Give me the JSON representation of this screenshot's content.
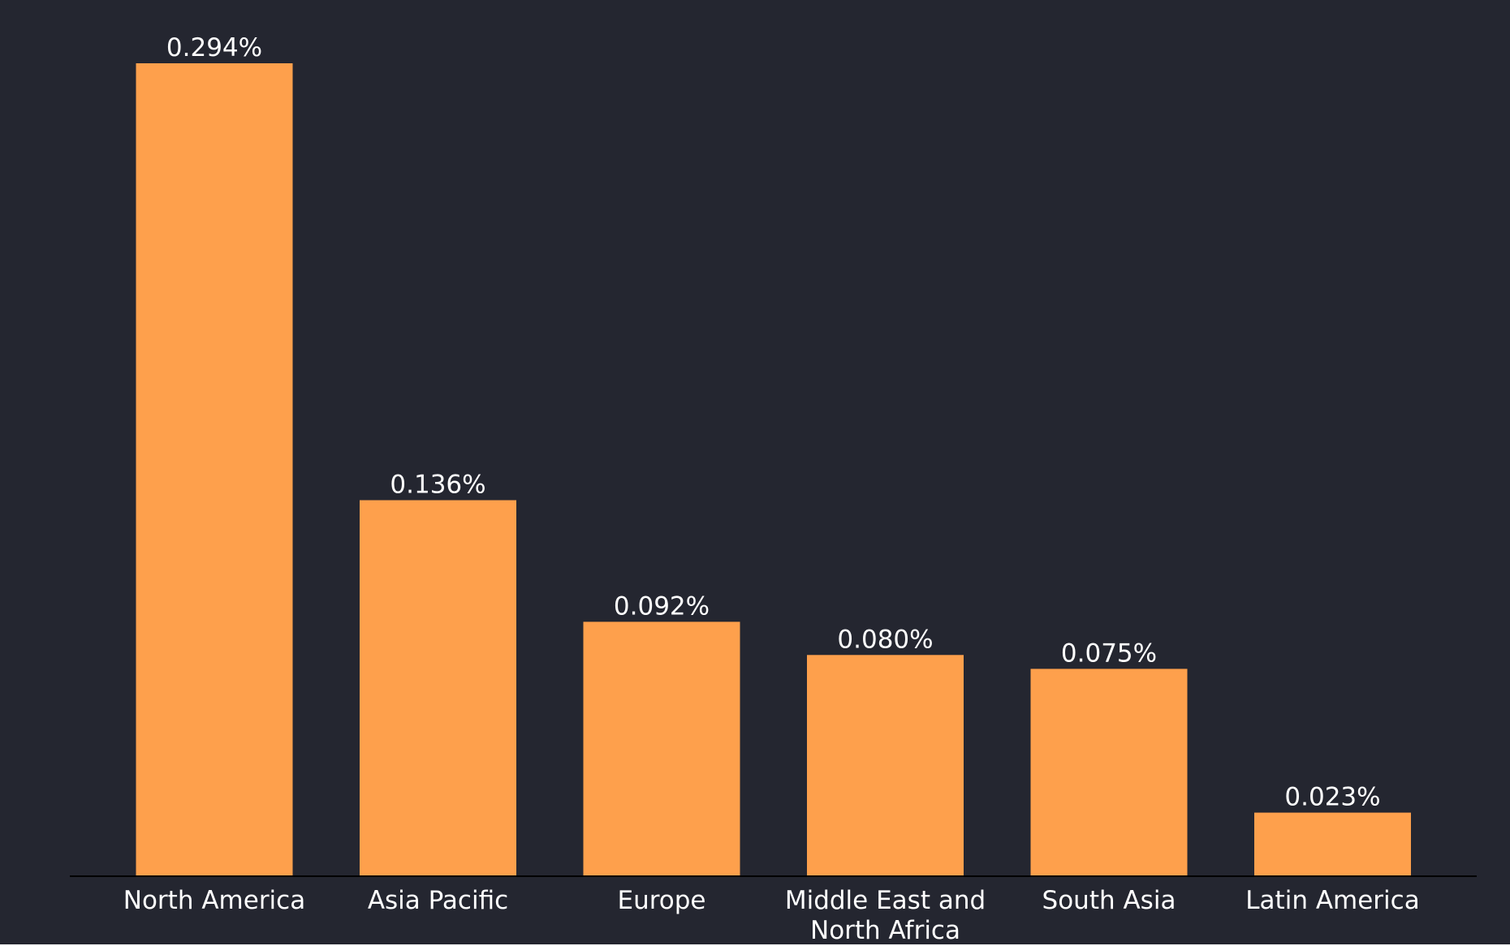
{
  "chart_data": {
    "type": "bar",
    "title": "",
    "xlabel": "",
    "ylabel": "",
    "categories": [
      [
        "North America"
      ],
      [
        "Asia Pacific"
      ],
      [
        "Europe"
      ],
      [
        "Middle East and",
        "North Africa"
      ],
      [
        "South Asia"
      ],
      [
        "Latin America"
      ]
    ],
    "values": [
      0.294,
      0.136,
      0.092,
      0.08,
      0.075,
      0.023
    ],
    "value_labels": [
      "0.294%",
      "0.136%",
      "0.092%",
      "0.080%",
      "0.075%",
      "0.023%"
    ],
    "ylim": [
      0,
      0.3
    ],
    "grid": false,
    "legend": "none",
    "colors": {
      "background": "#242630",
      "bar": "#FEA04C",
      "text": "#FFFFFF",
      "axis": "#000000"
    }
  }
}
